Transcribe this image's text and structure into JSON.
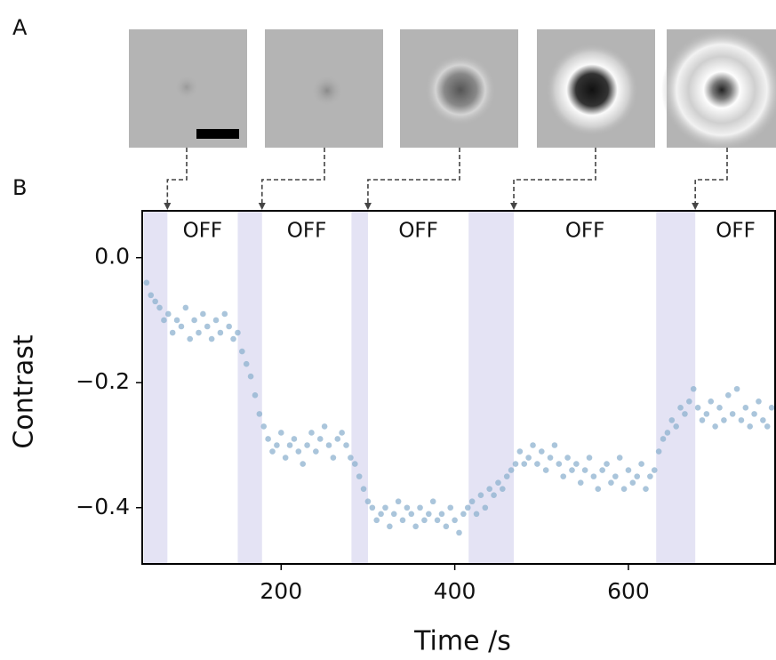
{
  "panels": [
    "A",
    "B"
  ],
  "chart_data": {
    "type": "scatter",
    "xlabel": "Time /s",
    "ylabel": "Contrast",
    "xlim": [
      40,
      770
    ],
    "ylim": [
      -0.49,
      0.075
    ],
    "xticks": [
      200,
      400,
      600
    ],
    "yticks": [
      {
        "value": 0,
        "label": "0.0"
      },
      {
        "value": -0.2,
        "label": "−0.2"
      },
      {
        "value": -0.4,
        "label": "−0.4"
      }
    ],
    "color": "#8db2cf",
    "shade_color": "#e4e3f4",
    "shaded_regions": [
      [
        42,
        69
      ],
      [
        150,
        178
      ],
      [
        281,
        300
      ],
      [
        416,
        468
      ],
      [
        632,
        677
      ]
    ],
    "annotations": [
      "OFF",
      "OFF",
      "OFF",
      "OFF",
      "OFF"
    ],
    "x": [
      45,
      50,
      55,
      60,
      65,
      70,
      75,
      80,
      85,
      90,
      95,
      100,
      105,
      110,
      115,
      120,
      125,
      130,
      135,
      140,
      145,
      150,
      155,
      160,
      165,
      170,
      175,
      180,
      185,
      190,
      195,
      200,
      205,
      210,
      215,
      220,
      225,
      230,
      235,
      240,
      245,
      250,
      255,
      260,
      265,
      270,
      275,
      280,
      285,
      290,
      295,
      300,
      305,
      310,
      315,
      320,
      325,
      330,
      335,
      340,
      345,
      350,
      355,
      360,
      365,
      370,
      375,
      380,
      385,
      390,
      395,
      400,
      405,
      410,
      415,
      420,
      425,
      430,
      435,
      440,
      445,
      450,
      455,
      460,
      465,
      470,
      475,
      480,
      485,
      490,
      495,
      500,
      505,
      510,
      515,
      520,
      525,
      530,
      535,
      540,
      545,
      550,
      555,
      560,
      565,
      570,
      575,
      580,
      585,
      590,
      595,
      600,
      605,
      610,
      615,
      620,
      625,
      630,
      635,
      640,
      645,
      650,
      655,
      660,
      665,
      670,
      675,
      680,
      685,
      690,
      695,
      700,
      705,
      710,
      715,
      720,
      725,
      730,
      735,
      740,
      745,
      750,
      755,
      760,
      765
    ],
    "values": [
      -0.04,
      -0.06,
      -0.07,
      -0.08,
      -0.1,
      -0.09,
      -0.12,
      -0.1,
      -0.11,
      -0.08,
      -0.13,
      -0.1,
      -0.12,
      -0.09,
      -0.11,
      -0.13,
      -0.1,
      -0.12,
      -0.09,
      -0.11,
      -0.13,
      -0.12,
      -0.15,
      -0.17,
      -0.19,
      -0.22,
      -0.25,
      -0.27,
      -0.29,
      -0.31,
      -0.3,
      -0.28,
      -0.32,
      -0.3,
      -0.29,
      -0.31,
      -0.33,
      -0.3,
      -0.28,
      -0.31,
      -0.29,
      -0.27,
      -0.3,
      -0.32,
      -0.29,
      -0.28,
      -0.3,
      -0.32,
      -0.33,
      -0.35,
      -0.37,
      -0.39,
      -0.4,
      -0.42,
      -0.41,
      -0.4,
      -0.43,
      -0.41,
      -0.39,
      -0.42,
      -0.4,
      -0.41,
      -0.43,
      -0.4,
      -0.42,
      -0.41,
      -0.39,
      -0.42,
      -0.41,
      -0.43,
      -0.4,
      -0.42,
      -0.44,
      -0.41,
      -0.4,
      -0.39,
      -0.41,
      -0.38,
      -0.4,
      -0.37,
      -0.38,
      -0.36,
      -0.37,
      -0.35,
      -0.34,
      -0.33,
      -0.31,
      -0.33,
      -0.32,
      -0.3,
      -0.33,
      -0.31,
      -0.34,
      -0.32,
      -0.3,
      -0.33,
      -0.35,
      -0.32,
      -0.34,
      -0.33,
      -0.36,
      -0.34,
      -0.32,
      -0.35,
      -0.37,
      -0.34,
      -0.33,
      -0.36,
      -0.35,
      -0.32,
      -0.37,
      -0.34,
      -0.36,
      -0.35,
      -0.33,
      -0.37,
      -0.35,
      -0.34,
      -0.31,
      -0.29,
      -0.28,
      -0.26,
      -0.27,
      -0.24,
      -0.25,
      -0.23,
      -0.21,
      -0.24,
      -0.26,
      -0.25,
      -0.23,
      -0.27,
      -0.24,
      -0.26,
      -0.22,
      -0.25,
      -0.21,
      -0.26,
      -0.24,
      -0.27,
      -0.25,
      -0.23,
      -0.26,
      -0.27,
      -0.24
    ]
  }
}
